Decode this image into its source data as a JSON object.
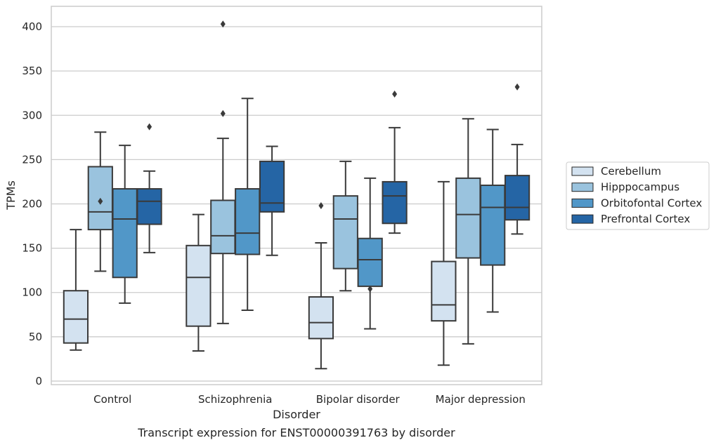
{
  "chart_data": {
    "type": "box",
    "title": "",
    "caption": "Transcript expression for ENST00000391763 by disorder",
    "xlabel": "Disorder",
    "ylabel": "TPMs",
    "ylim": [
      -4,
      423
    ],
    "yticks": [
      0,
      50,
      100,
      150,
      200,
      250,
      300,
      350,
      400
    ],
    "grid": "horizontal",
    "legend_position": "right",
    "categories": [
      "Control",
      "Schizophrenia",
      "Bipolar disorder",
      "Major depression"
    ],
    "series": [
      {
        "name": "Cerebellum",
        "color": "#d3e2f0",
        "boxes": [
          {
            "whisker_low": 35,
            "q1": 43,
            "median": 70,
            "q3": 102,
            "whisker_high": 171,
            "outliers": []
          },
          {
            "whisker_low": 34,
            "q1": 62,
            "median": 117,
            "q3": 153,
            "whisker_high": 188,
            "outliers": []
          },
          {
            "whisker_low": 14,
            "q1": 48,
            "median": 66,
            "q3": 95,
            "whisker_high": 156,
            "outliers": [
              198
            ]
          },
          {
            "whisker_low": 18,
            "q1": 68,
            "median": 86,
            "q3": 135,
            "whisker_high": 225,
            "outliers": []
          }
        ]
      },
      {
        "name": "Hipppocampus",
        "color": "#9ac3de",
        "boxes": [
          {
            "whisker_low": 124,
            "q1": 171,
            "median": 191,
            "q3": 242,
            "whisker_high": 281,
            "outliers": [
              203
            ]
          },
          {
            "whisker_low": 65,
            "q1": 144,
            "median": 164,
            "q3": 204,
            "whisker_high": 274,
            "outliers": [
              302,
              403
            ]
          },
          {
            "whisker_low": 102,
            "q1": 127,
            "median": 183,
            "q3": 209,
            "whisker_high": 248,
            "outliers": []
          },
          {
            "whisker_low": 42,
            "q1": 139,
            "median": 188,
            "q3": 229,
            "whisker_high": 296,
            "outliers": []
          }
        ]
      },
      {
        "name": "Orbitofontal Cortex",
        "color": "#5197c8",
        "boxes": [
          {
            "whisker_low": 88,
            "q1": 117,
            "median": 183,
            "q3": 217,
            "whisker_high": 266,
            "outliers": []
          },
          {
            "whisker_low": 80,
            "q1": 143,
            "median": 167,
            "q3": 217,
            "whisker_high": 319,
            "outliers": []
          },
          {
            "whisker_low": 59,
            "q1": 107,
            "median": 137,
            "q3": 161,
            "whisker_high": 229,
            "outliers": [
              104
            ]
          },
          {
            "whisker_low": 78,
            "q1": 131,
            "median": 196,
            "q3": 221,
            "whisker_high": 284,
            "outliers": []
          }
        ]
      },
      {
        "name": "Prefrontal Cortex",
        "color": "#2565a5",
        "boxes": [
          {
            "whisker_low": 145,
            "q1": 177,
            "median": 203,
            "q3": 217,
            "whisker_high": 237,
            "outliers": [
              287
            ]
          },
          {
            "whisker_low": 142,
            "q1": 191,
            "median": 201,
            "q3": 248,
            "whisker_high": 265,
            "outliers": []
          },
          {
            "whisker_low": 167,
            "q1": 178,
            "median": 209,
            "q3": 225,
            "whisker_high": 286,
            "outliers": [
              324
            ]
          },
          {
            "whisker_low": 166,
            "q1": 182,
            "median": 196,
            "q3": 232,
            "whisker_high": 267,
            "outliers": [
              332
            ]
          }
        ]
      }
    ]
  }
}
